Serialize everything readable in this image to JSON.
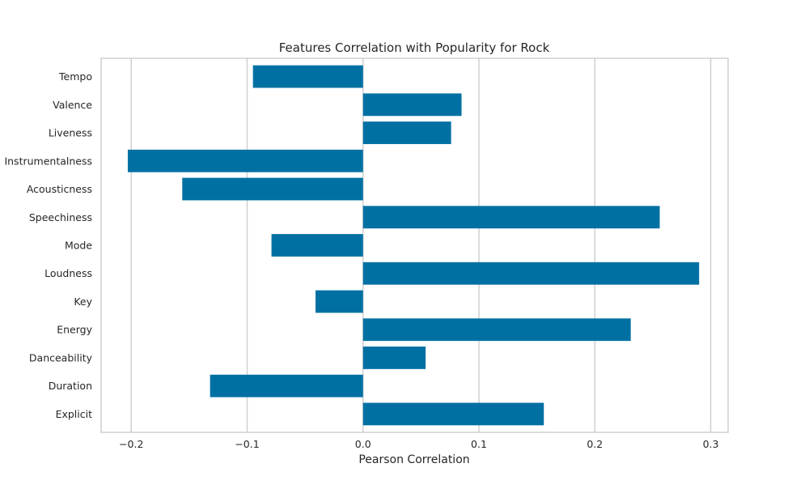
{
  "chart_data": {
    "type": "bar",
    "orientation": "horizontal",
    "title": "Features Correlation with Popularity for Rock",
    "xlabel": "Pearson Correlation",
    "ylabel": "",
    "xlim": [
      -0.226,
      0.315
    ],
    "xticks": [
      -0.2,
      -0.1,
      0.0,
      0.1,
      0.2,
      0.3
    ],
    "xtick_labels": [
      "−0.2",
      "−0.1",
      "0.0",
      "0.1",
      "0.2",
      "0.3"
    ],
    "grid": true,
    "legend": "none",
    "categories": [
      "Tempo",
      "Valence",
      "Liveness",
      "Instrumentalness",
      "Acousticness",
      "Speechiness",
      "Mode",
      "Loudness",
      "Key",
      "Energy",
      "Danceability",
      "Duration",
      "Explicit"
    ],
    "values": [
      -0.095,
      0.085,
      0.076,
      -0.203,
      -0.156,
      0.256,
      -0.079,
      0.29,
      -0.041,
      0.231,
      0.054,
      -0.132,
      0.156
    ],
    "bar_color": "#0070a3",
    "grid_color": "#d0d0d0",
    "frame_color": "#d0d0d0"
  }
}
